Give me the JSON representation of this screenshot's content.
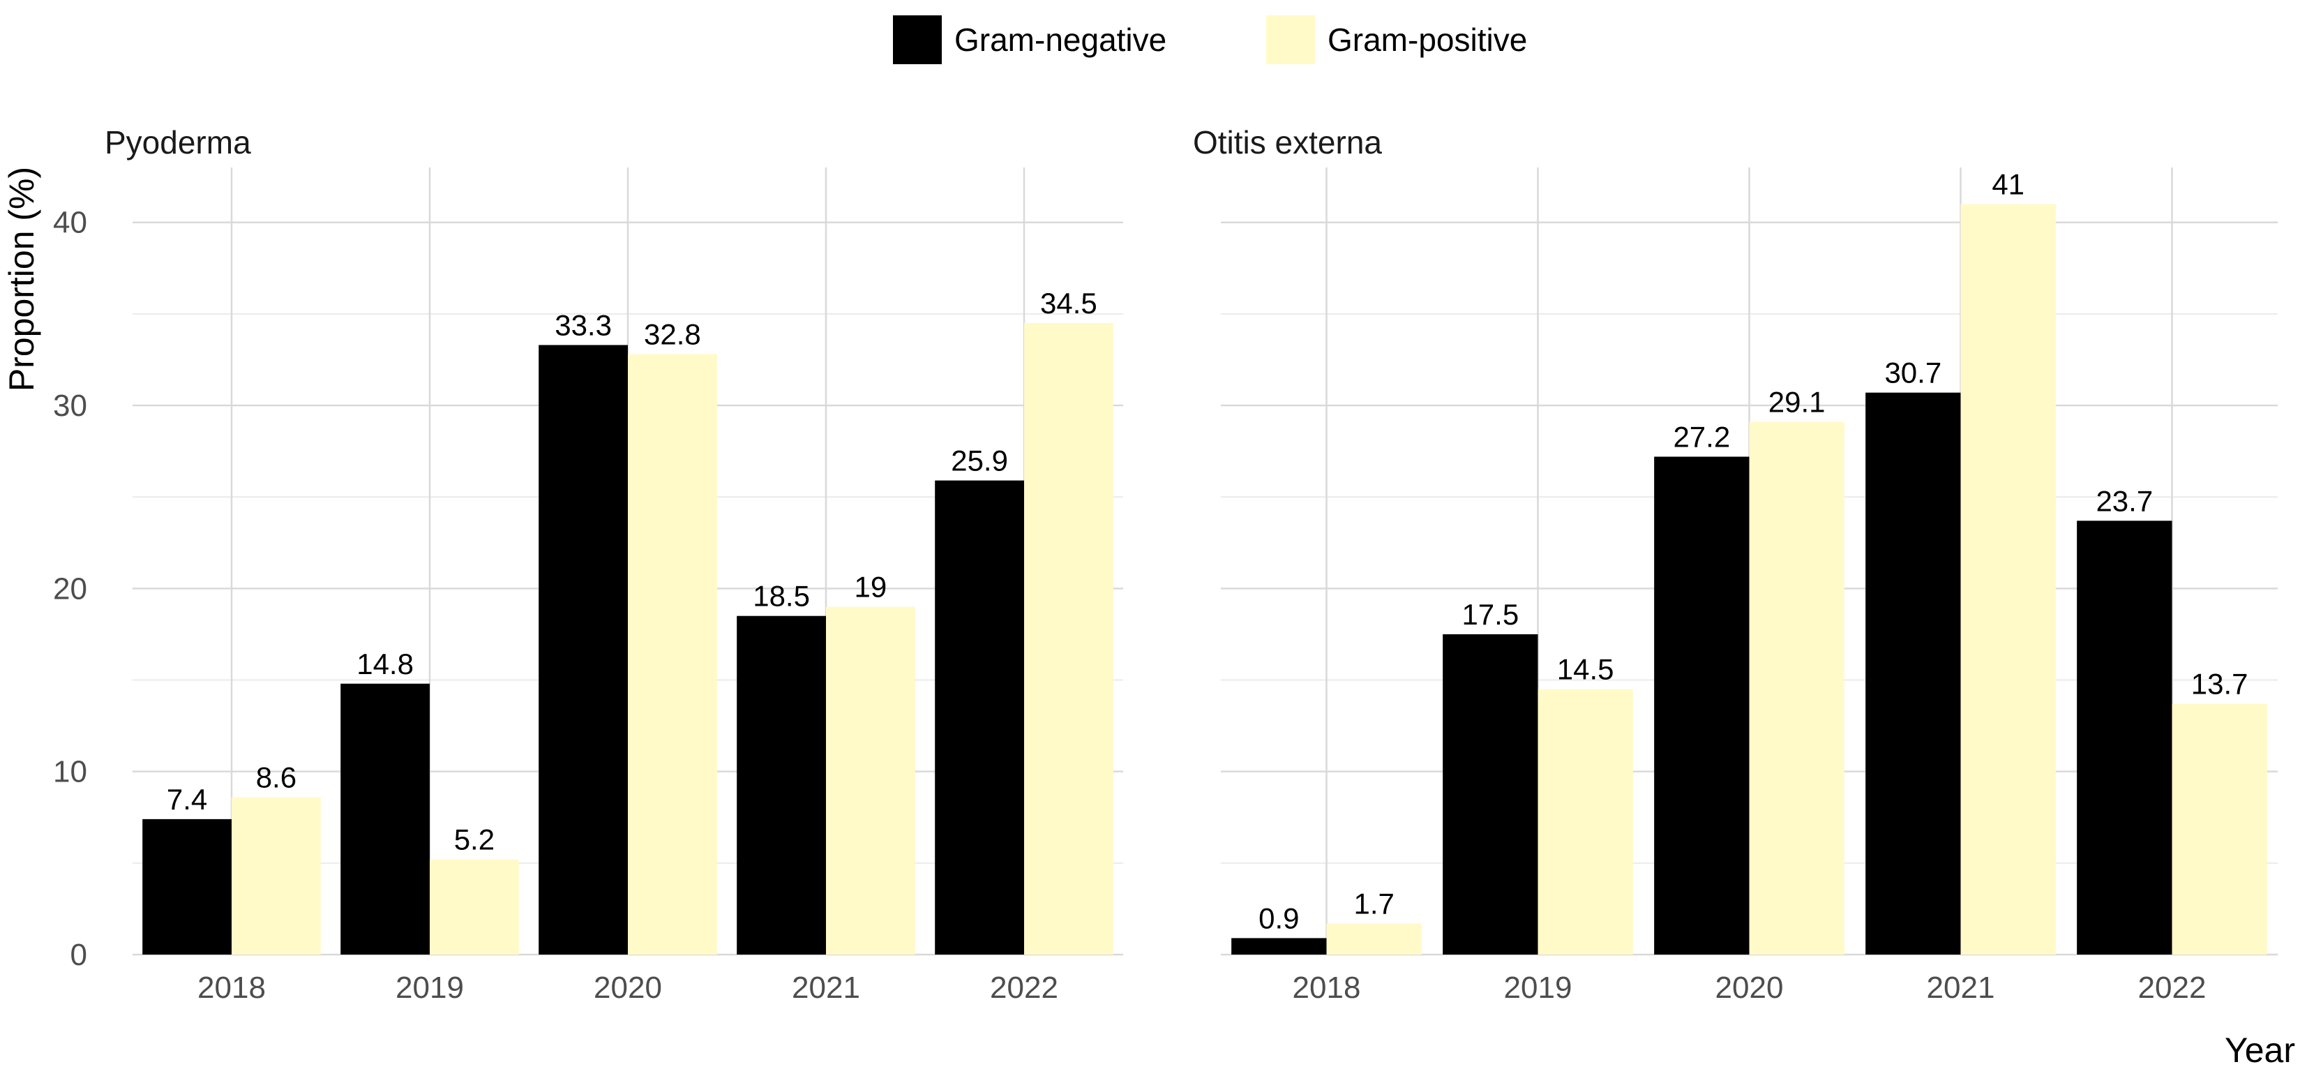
{
  "chart_data": {
    "type": "bar",
    "ylabel": "Proportion (%)",
    "xlabel": "Year",
    "ylim": [
      0,
      43
    ],
    "yticks": [
      0,
      10,
      20,
      30,
      40
    ],
    "grid": true,
    "legend_position": "top-center",
    "legend": [
      {
        "name": "Gram-negative",
        "color": "#000000"
      },
      {
        "name": "Gram-positive",
        "color": "#FFFAC8"
      }
    ],
    "categories": [
      "2018",
      "2019",
      "2020",
      "2021",
      "2022"
    ],
    "panels": [
      {
        "title": "Pyoderma",
        "series": [
          {
            "name": "Gram-negative",
            "values": [
              7.4,
              14.8,
              33.3,
              18.5,
              25.9
            ],
            "labels": [
              "7.4",
              "14.8",
              "33.3",
              "18.5",
              "25.9"
            ]
          },
          {
            "name": "Gram-positive",
            "values": [
              8.6,
              5.2,
              32.8,
              19,
              34.5
            ],
            "labels": [
              "8.6",
              "5.2",
              "32.8",
              "19",
              "34.5"
            ]
          }
        ]
      },
      {
        "title": "Otitis externa",
        "series": [
          {
            "name": "Gram-negative",
            "values": [
              0.9,
              17.5,
              27.2,
              30.7,
              23.7
            ],
            "labels": [
              "0.9",
              "17.5",
              "27.2",
              "30.7",
              "23.7"
            ]
          },
          {
            "name": "Gram-positive",
            "values": [
              1.7,
              14.5,
              29.1,
              41,
              13.7
            ],
            "labels": [
              "1.7",
              "14.5",
              "29.1",
              "41",
              "13.7"
            ]
          }
        ]
      }
    ]
  }
}
